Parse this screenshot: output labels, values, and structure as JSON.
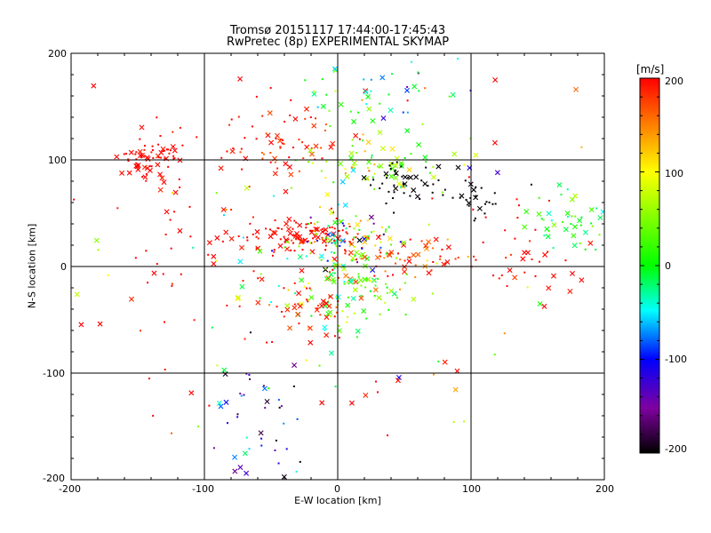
{
  "chart_data": {
    "type": "scatter",
    "title": "Tromsø 20151117 17:44:00-17:45:43",
    "subtitle": "RwPretec (8p) EXPERIMENTAL SKYMAP",
    "xlabel": "E-W location [km]",
    "ylabel": "N-S location [km]",
    "xlim": [
      -200,
      200
    ],
    "ylim": [
      -200,
      200
    ],
    "xticks": [
      "-200",
      "-100",
      "0",
      "100",
      "200"
    ],
    "yticks": [
      "200",
      "100",
      "0",
      "-100",
      "-200"
    ],
    "grid": true,
    "colorbar": {
      "unit": "[m/s]",
      "range": [
        -200,
        200
      ],
      "ticks": [
        "200",
        "100",
        "0",
        "-100",
        "-200"
      ],
      "colormap": [
        "#000000",
        "#7f00a0",
        "#0000ff",
        "#00ffff",
        "#00ff00",
        "#ffff00",
        "#ff0000"
      ]
    },
    "clusters": [
      {
        "label": "NW red patch",
        "x": -140,
        "y": 100,
        "sx": 12,
        "sy": 12,
        "n": 70,
        "v": 200,
        "vs": 10
      },
      {
        "label": "N-central red arc",
        "x": -40,
        "y": 120,
        "sx": 25,
        "sy": 20,
        "n": 70,
        "v": 190,
        "vs": 20
      },
      {
        "label": "N green/yellow band",
        "x": 30,
        "y": 95,
        "sx": 30,
        "sy": 12,
        "n": 70,
        "v": 60,
        "vs": 40
      },
      {
        "label": "NE dark cluster",
        "x": 50,
        "y": 80,
        "sx": 15,
        "sy": 10,
        "n": 45,
        "v": -200,
        "vs": 5
      },
      {
        "label": "E dark cluster",
        "x": 105,
        "y": 65,
        "sx": 12,
        "sy": 10,
        "n": 25,
        "v": -200,
        "vs": 5
      },
      {
        "label": "Central red band",
        "x": -30,
        "y": 28,
        "sx": 25,
        "sy": 8,
        "n": 110,
        "v": 200,
        "vs": 10
      },
      {
        "label": "Central mixed core",
        "x": 5,
        "y": 25,
        "sx": 20,
        "sy": 15,
        "n": 100,
        "v": 0,
        "vs": 110
      },
      {
        "label": "E red band",
        "x": 55,
        "y": 10,
        "sx": 28,
        "sy": 10,
        "n": 60,
        "v": 170,
        "vs": 30
      },
      {
        "label": "S central green",
        "x": 10,
        "y": -20,
        "sx": 22,
        "sy": 20,
        "n": 110,
        "v": 40,
        "vs": 50
      },
      {
        "label": "S red",
        "x": -30,
        "y": -35,
        "sx": 20,
        "sy": 15,
        "n": 50,
        "v": 190,
        "vs": 15
      },
      {
        "label": "Far E green",
        "x": 175,
        "y": 40,
        "sx": 20,
        "sy": 15,
        "n": 45,
        "v": 10,
        "vs": 30
      },
      {
        "label": "E red scatter",
        "x": 140,
        "y": 20,
        "sx": 25,
        "sy": 20,
        "n": 35,
        "v": 200,
        "vs": 10
      },
      {
        "label": "SW blue streak",
        "x": -65,
        "y": -150,
        "sx": 15,
        "sy": 40,
        "n": 45,
        "v": -120,
        "vs": 50
      },
      {
        "label": "W red scatter",
        "x": -120,
        "y": 20,
        "sx": 40,
        "sy": 60,
        "n": 50,
        "v": 200,
        "vs": 10
      },
      {
        "label": "N cyan/green",
        "x": 30,
        "y": 160,
        "sx": 30,
        "sy": 25,
        "n": 50,
        "v": -20,
        "vs": 50
      },
      {
        "label": "background",
        "x": 0,
        "y": 0,
        "sx": 120,
        "sy": 110,
        "n": 110,
        "v": 120,
        "vs": 120
      }
    ]
  }
}
